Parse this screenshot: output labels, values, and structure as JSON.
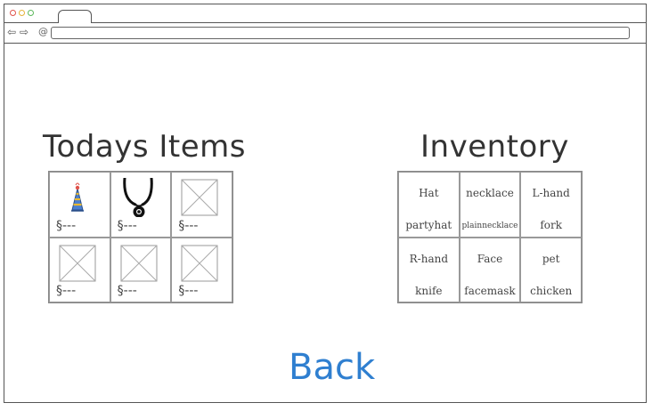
{
  "browser": {
    "nav_back": "⇦",
    "nav_forward": "⇨",
    "url_icon": "@",
    "url": ""
  },
  "todays_items": {
    "title": "Todays Items",
    "items": [
      {
        "icon": "party-hat-icon",
        "price": "§---"
      },
      {
        "icon": "necklace-icon",
        "price": "§---"
      },
      {
        "icon": "image-placeholder-icon",
        "price": "§---"
      },
      {
        "icon": "image-placeholder-icon",
        "price": "§---"
      },
      {
        "icon": "image-placeholder-icon",
        "price": "§---"
      },
      {
        "icon": "image-placeholder-icon",
        "price": "§---"
      }
    ]
  },
  "inventory": {
    "title": "Inventory",
    "slots": [
      {
        "category": "Hat",
        "value": "partyhat"
      },
      {
        "category": "necklace",
        "value": "plainnecklace"
      },
      {
        "category": "L-hand",
        "value": "fork"
      },
      {
        "category": "R-hand",
        "value": "knife"
      },
      {
        "category": "Face",
        "value": "facemask"
      },
      {
        "category": "pet",
        "value": "chicken"
      }
    ]
  },
  "back_label": "Back",
  "colors": {
    "link": "#2f7fd0",
    "border": "#555555"
  }
}
